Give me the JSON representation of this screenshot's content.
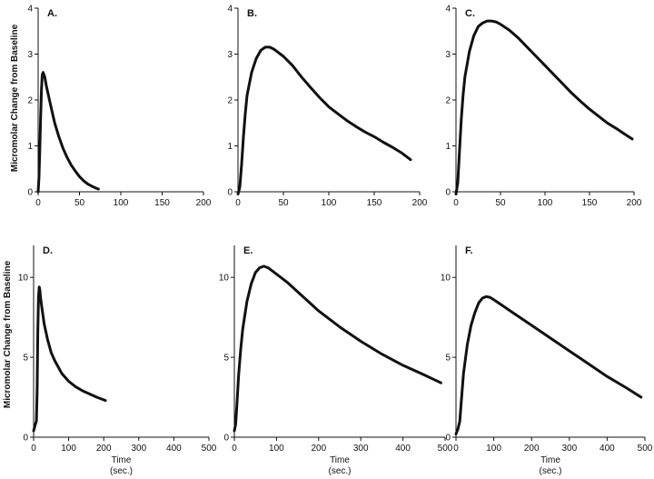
{
  "figure": {
    "ylabel_top": "Micromolar Change from Baseline",
    "ylabel_bottom": "Micromolar Change from Baseline"
  },
  "chart_data": [
    {
      "type": "line",
      "panel": "A.",
      "xlabel": "",
      "xlabel2": "",
      "xlim": [
        0,
        200
      ],
      "ylim": [
        0,
        4
      ],
      "xticks": [
        0,
        50,
        100,
        150,
        200
      ],
      "yticks": [
        0,
        1,
        2,
        3,
        4
      ],
      "series": [
        {
          "x": [
            0,
            1,
            2,
            3,
            4,
            5,
            6,
            8,
            10,
            15,
            20,
            25,
            30,
            35,
            40,
            45,
            50,
            55,
            60,
            65,
            70,
            73
          ],
          "y": [
            0.0,
            0.3,
            0.9,
            1.6,
            2.2,
            2.55,
            2.6,
            2.5,
            2.3,
            1.9,
            1.5,
            1.2,
            0.95,
            0.75,
            0.58,
            0.45,
            0.33,
            0.24,
            0.17,
            0.12,
            0.08,
            0.06
          ]
        }
      ]
    },
    {
      "type": "line",
      "panel": "B.",
      "xlabel": "",
      "xlabel2": "",
      "xlim": [
        0,
        200
      ],
      "ylim": [
        0,
        4
      ],
      "xticks": [
        0,
        50,
        100,
        150,
        200
      ],
      "yticks": [
        0,
        1,
        2,
        3,
        4
      ],
      "series": [
        {
          "x": [
            0,
            2,
            4,
            6,
            8,
            10,
            15,
            20,
            25,
            30,
            35,
            40,
            50,
            60,
            70,
            80,
            90,
            100,
            110,
            120,
            130,
            140,
            150,
            160,
            170,
            180,
            190
          ],
          "y": [
            -0.05,
            0.1,
            0.6,
            1.2,
            1.7,
            2.1,
            2.6,
            2.9,
            3.08,
            3.15,
            3.15,
            3.1,
            2.95,
            2.75,
            2.5,
            2.27,
            2.05,
            1.85,
            1.7,
            1.55,
            1.42,
            1.3,
            1.2,
            1.08,
            0.97,
            0.85,
            0.7
          ]
        }
      ]
    },
    {
      "type": "line",
      "panel": "C.",
      "xlabel": "",
      "xlabel2": "",
      "xlim": [
        0,
        200
      ],
      "ylim": [
        0,
        4
      ],
      "xticks": [
        0,
        50,
        100,
        150,
        200
      ],
      "yticks": [
        0,
        1,
        2,
        3,
        4
      ],
      "series": [
        {
          "x": [
            0,
            2,
            4,
            6,
            8,
            10,
            15,
            20,
            25,
            30,
            35,
            40,
            45,
            50,
            60,
            70,
            80,
            90,
            100,
            110,
            120,
            130,
            140,
            150,
            160,
            170,
            180,
            190,
            198
          ],
          "y": [
            -0.05,
            0.2,
            0.9,
            1.6,
            2.1,
            2.5,
            3.05,
            3.4,
            3.6,
            3.68,
            3.72,
            3.72,
            3.7,
            3.65,
            3.52,
            3.35,
            3.15,
            2.95,
            2.75,
            2.55,
            2.35,
            2.15,
            1.97,
            1.8,
            1.65,
            1.5,
            1.38,
            1.25,
            1.15
          ]
        }
      ]
    },
    {
      "type": "line",
      "panel": "D.",
      "xlabel": "Time",
      "xlabel2": "(sec.)",
      "xlim": [
        0,
        500
      ],
      "ylim": [
        0,
        12
      ],
      "xticks": [
        0,
        100,
        200,
        300,
        400,
        500
      ],
      "yticks": [
        0,
        5,
        10
      ],
      "series": [
        {
          "x": [
            0,
            5,
            8,
            10,
            12,
            14,
            16,
            18,
            20,
            25,
            30,
            40,
            50,
            60,
            80,
            100,
            120,
            140,
            160,
            180,
            205
          ],
          "y": [
            0.4,
            0.8,
            1.0,
            3.0,
            6.5,
            8.8,
            9.4,
            9.2,
            8.7,
            7.9,
            7.1,
            6.1,
            5.3,
            4.8,
            4.0,
            3.5,
            3.15,
            2.9,
            2.7,
            2.5,
            2.3
          ]
        }
      ]
    },
    {
      "type": "line",
      "panel": "E.",
      "xlabel": "Time",
      "xlabel2": "(sec.)",
      "xlim": [
        0,
        500
      ],
      "ylim": [
        0,
        12
      ],
      "xticks": [
        0,
        100,
        200,
        300,
        400,
        500
      ],
      "yticks": [
        0,
        5,
        10
      ],
      "series": [
        {
          "x": [
            0,
            3,
            6,
            10,
            15,
            20,
            30,
            40,
            50,
            60,
            70,
            80,
            100,
            125,
            150,
            175,
            200,
            250,
            300,
            350,
            400,
            450,
            490
          ],
          "y": [
            0.4,
            0.8,
            2.0,
            3.8,
            5.5,
            6.8,
            8.5,
            9.6,
            10.3,
            10.6,
            10.7,
            10.6,
            10.2,
            9.7,
            9.1,
            8.5,
            7.9,
            6.9,
            6.0,
            5.2,
            4.5,
            3.9,
            3.4
          ]
        }
      ]
    },
    {
      "type": "line",
      "panel": "F.",
      "xlabel": "Time",
      "xlabel2": "(sec.)",
      "xlim": [
        0,
        500
      ],
      "ylim": [
        0,
        12
      ],
      "xticks": [
        0,
        100,
        200,
        300,
        400,
        500
      ],
      "yticks": [
        0,
        5,
        10
      ],
      "series": [
        {
          "x": [
            0,
            5,
            10,
            15,
            20,
            30,
            40,
            50,
            60,
            70,
            80,
            90,
            100,
            125,
            150,
            175,
            200,
            250,
            300,
            350,
            400,
            450,
            490
          ],
          "y": [
            0.2,
            0.5,
            1.0,
            2.5,
            4.0,
            5.8,
            7.0,
            7.8,
            8.4,
            8.7,
            8.8,
            8.75,
            8.6,
            8.2,
            7.8,
            7.4,
            7.0,
            6.2,
            5.4,
            4.6,
            3.8,
            3.1,
            2.5
          ]
        }
      ]
    }
  ]
}
